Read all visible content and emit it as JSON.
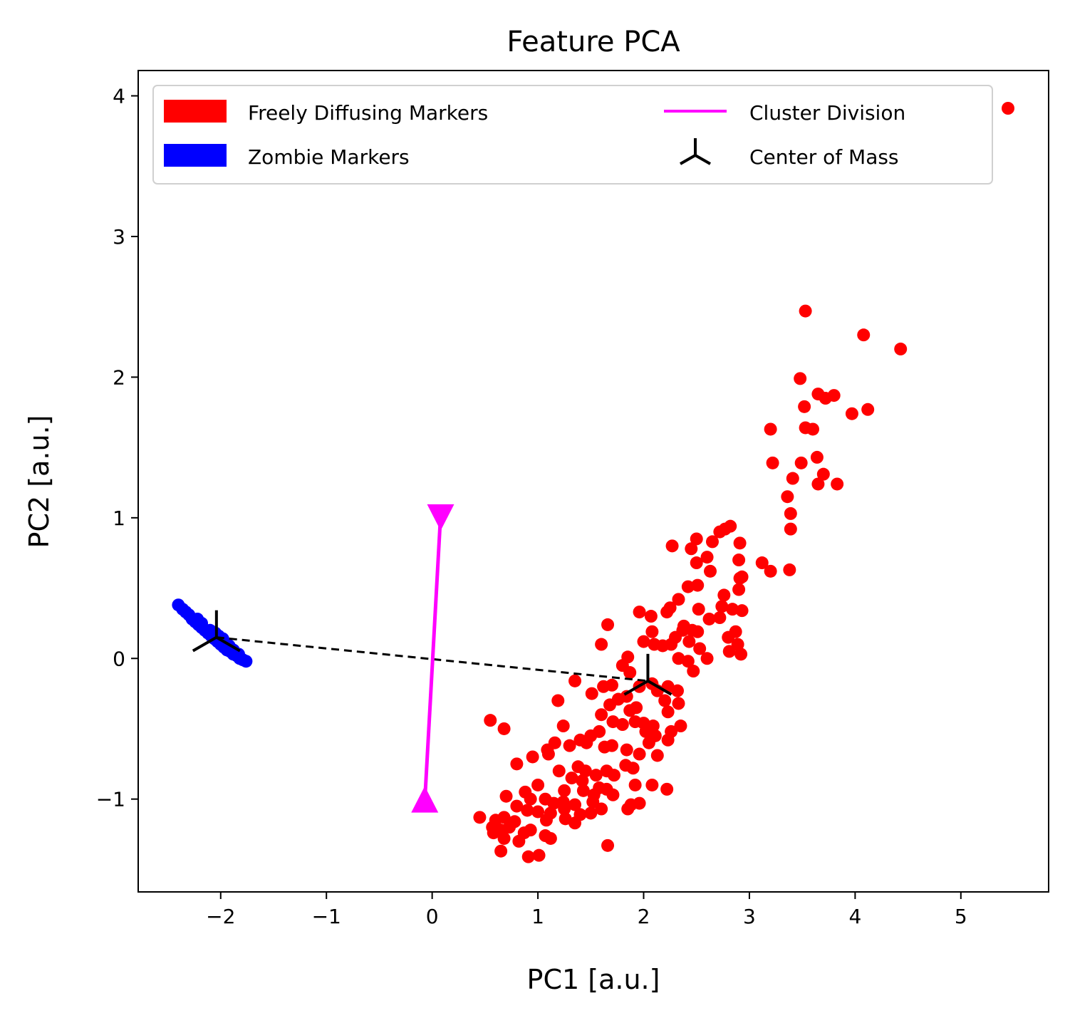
{
  "chart_data": {
    "type": "scatter",
    "title": "Feature PCA",
    "xlabel": "PC1 [a.u.]",
    "ylabel": "PC2 [a.u.]",
    "xlim": [
      -2.78,
      5.83
    ],
    "ylim": [
      -1.66,
      4.18
    ],
    "xticks": [
      -2,
      -1,
      0,
      1,
      2,
      3,
      4,
      5
    ],
    "xtick_labels": [
      "−2",
      "−1",
      "0",
      "1",
      "2",
      "3",
      "4",
      "5"
    ],
    "yticks": [
      -1,
      0,
      1,
      2,
      3,
      4
    ],
    "ytick_labels": [
      "−1",
      "0",
      "1",
      "2",
      "3",
      "4"
    ],
    "grid": false,
    "legend_position": "top",
    "legend": [
      {
        "label": "Freely Diffusing Markers",
        "symbol": "patch",
        "color": "#ff0000"
      },
      {
        "label": "Zombie Markers",
        "symbol": "patch",
        "color": "#0000ff"
      },
      {
        "label": "Cluster Division",
        "symbol": "line",
        "color": "#ff00ff"
      },
      {
        "label": "Center of Mass",
        "symbol": "tri_down_marker",
        "color": "#000000"
      }
    ],
    "series": [
      {
        "name": "Freely Diffusing Markers",
        "color": "#ff0000",
        "points": [
          [
            3.53,
            2.47
          ],
          [
            4.08,
            2.3
          ],
          [
            4.43,
            2.2
          ],
          [
            3.48,
            1.99
          ],
          [
            3.52,
            1.79
          ],
          [
            3.65,
            1.88
          ],
          [
            3.72,
            1.85
          ],
          [
            3.8,
            1.87
          ],
          [
            3.97,
            1.74
          ],
          [
            4.12,
            1.77
          ],
          [
            3.2,
            1.63
          ],
          [
            3.53,
            1.64
          ],
          [
            3.6,
            1.63
          ],
          [
            3.22,
            1.39
          ],
          [
            3.49,
            1.39
          ],
          [
            3.64,
            1.43
          ],
          [
            3.7,
            1.31
          ],
          [
            3.41,
            1.28
          ],
          [
            3.65,
            1.24
          ],
          [
            3.83,
            1.24
          ],
          [
            3.36,
            1.15
          ],
          [
            3.39,
            1.03
          ],
          [
            3.39,
            0.92
          ],
          [
            3.38,
            0.63
          ],
          [
            3.12,
            0.68
          ],
          [
            3.2,
            0.62
          ],
          [
            2.82,
            0.94
          ],
          [
            2.77,
            0.92
          ],
          [
            2.72,
            0.9
          ],
          [
            2.91,
            0.82
          ],
          [
            2.65,
            0.83
          ],
          [
            2.5,
            0.85
          ],
          [
            2.45,
            0.78
          ],
          [
            2.27,
            0.8
          ],
          [
            2.6,
            0.72
          ],
          [
            2.5,
            0.68
          ],
          [
            2.9,
            0.7
          ],
          [
            2.63,
            0.62
          ],
          [
            2.91,
            0.57
          ],
          [
            2.93,
            0.58
          ],
          [
            2.9,
            0.49
          ],
          [
            2.51,
            0.52
          ],
          [
            2.42,
            0.51
          ],
          [
            2.76,
            0.45
          ],
          [
            2.74,
            0.37
          ],
          [
            2.84,
            0.35
          ],
          [
            2.93,
            0.34
          ],
          [
            2.72,
            0.29
          ],
          [
            2.62,
            0.28
          ],
          [
            2.52,
            0.35
          ],
          [
            2.33,
            0.42
          ],
          [
            2.25,
            0.36
          ],
          [
            2.22,
            0.33
          ],
          [
            2.37,
            0.2
          ],
          [
            2.38,
            0.23
          ],
          [
            2.46,
            0.2
          ],
          [
            2.51,
            0.19
          ],
          [
            2.87,
            0.19
          ],
          [
            2.3,
            0.15
          ],
          [
            2.26,
            0.1
          ],
          [
            2.8,
            0.15
          ],
          [
            2.43,
            0.12
          ],
          [
            2.53,
            0.07
          ],
          [
            2.6,
            0.0
          ],
          [
            2.81,
            0.05
          ],
          [
            2.89,
            0.1
          ],
          [
            2.92,
            0.03
          ],
          [
            2.42,
            -0.02
          ],
          [
            2.47,
            -0.09
          ],
          [
            2.33,
            0.0
          ],
          [
            1.96,
            0.33
          ],
          [
            2.07,
            0.3
          ],
          [
            2.08,
            0.19
          ],
          [
            2.0,
            0.12
          ],
          [
            2.1,
            0.1
          ],
          [
            2.18,
            0.09
          ],
          [
            1.66,
            0.24
          ],
          [
            1.6,
            0.1
          ],
          [
            1.85,
            0.01
          ],
          [
            1.8,
            -0.05
          ],
          [
            1.87,
            -0.1
          ],
          [
            1.96,
            -0.2
          ],
          [
            2.08,
            -0.18
          ],
          [
            2.23,
            -0.2
          ],
          [
            2.13,
            -0.23
          ],
          [
            2.32,
            -0.23
          ],
          [
            2.2,
            -0.3
          ],
          [
            2.23,
            -0.38
          ],
          [
            2.33,
            -0.32
          ],
          [
            2.35,
            -0.48
          ],
          [
            1.35,
            -0.16
          ],
          [
            1.51,
            -0.25
          ],
          [
            1.62,
            -0.2
          ],
          [
            1.7,
            -0.19
          ],
          [
            1.76,
            -0.29
          ],
          [
            1.84,
            -0.27
          ],
          [
            1.87,
            -0.37
          ],
          [
            1.93,
            -0.35
          ],
          [
            1.68,
            -0.33
          ],
          [
            1.6,
            -0.4
          ],
          [
            1.71,
            -0.45
          ],
          [
            1.8,
            -0.47
          ],
          [
            1.92,
            -0.45
          ],
          [
            2.0,
            -0.46
          ],
          [
            2.09,
            -0.48
          ],
          [
            2.02,
            -0.52
          ],
          [
            2.11,
            -0.55
          ],
          [
            2.23,
            -0.58
          ],
          [
            2.26,
            -0.52
          ],
          [
            2.05,
            -0.6
          ],
          [
            1.58,
            -0.52
          ],
          [
            1.5,
            -0.55
          ],
          [
            1.4,
            -0.58
          ],
          [
            1.3,
            -0.62
          ],
          [
            1.46,
            -0.6
          ],
          [
            1.63,
            -0.63
          ],
          [
            1.7,
            -0.62
          ],
          [
            1.84,
            -0.65
          ],
          [
            1.96,
            -0.68
          ],
          [
            2.13,
            -0.69
          ],
          [
            1.19,
            -0.3
          ],
          [
            1.24,
            -0.48
          ],
          [
            1.16,
            -0.6
          ],
          [
            1.09,
            -0.65
          ],
          [
            0.95,
            -0.7
          ],
          [
            0.8,
            -0.75
          ],
          [
            0.55,
            -0.44
          ],
          [
            0.68,
            -0.5
          ],
          [
            1.1,
            -0.68
          ],
          [
            1.38,
            -0.77
          ],
          [
            1.45,
            -0.8
          ],
          [
            1.55,
            -0.83
          ],
          [
            1.65,
            -0.8
          ],
          [
            1.72,
            -0.83
          ],
          [
            1.83,
            -0.76
          ],
          [
            1.9,
            -0.78
          ],
          [
            1.2,
            -0.8
          ],
          [
            1.32,
            -0.85
          ],
          [
            1.42,
            -0.87
          ],
          [
            1.58,
            -0.92
          ],
          [
            1.65,
            -0.93
          ],
          [
            1.71,
            -0.97
          ],
          [
            1.92,
            -0.9
          ],
          [
            2.08,
            -0.9
          ],
          [
            2.22,
            -0.93
          ],
          [
            1.25,
            -0.94
          ],
          [
            1.43,
            -0.94
          ],
          [
            1.53,
            -0.97
          ],
          [
            1.0,
            -0.9
          ],
          [
            0.88,
            -0.95
          ],
          [
            0.93,
            -1.0
          ],
          [
            1.07,
            -1.0
          ],
          [
            1.15,
            -1.03
          ],
          [
            1.24,
            -1.02
          ],
          [
            1.35,
            -1.04
          ],
          [
            1.52,
            -1.02
          ],
          [
            0.7,
            -0.98
          ],
          [
            0.8,
            -1.05
          ],
          [
            0.9,
            -1.08
          ],
          [
            1.0,
            -1.09
          ],
          [
            1.12,
            -1.1
          ],
          [
            1.25,
            -1.07
          ],
          [
            1.4,
            -1.11
          ],
          [
            1.5,
            -1.1
          ],
          [
            1.6,
            -1.07
          ],
          [
            1.85,
            -1.07
          ],
          [
            1.88,
            -1.04
          ],
          [
            1.96,
            -1.03
          ],
          [
            0.45,
            -1.13
          ],
          [
            0.6,
            -1.15
          ],
          [
            0.68,
            -1.13
          ],
          [
            0.78,
            -1.16
          ],
          [
            1.08,
            -1.15
          ],
          [
            1.26,
            -1.14
          ],
          [
            1.35,
            -1.17
          ],
          [
            0.57,
            -1.2
          ],
          [
            0.65,
            -1.22
          ],
          [
            0.73,
            -1.2
          ],
          [
            0.87,
            -1.24
          ],
          [
            0.93,
            -1.22
          ],
          [
            1.07,
            -1.26
          ],
          [
            1.12,
            -1.28
          ],
          [
            0.58,
            -1.24
          ],
          [
            0.68,
            -1.28
          ],
          [
            0.82,
            -1.3
          ],
          [
            1.66,
            -1.33
          ],
          [
            0.65,
            -1.37
          ],
          [
            0.91,
            -1.41
          ],
          [
            1.01,
            -1.4
          ]
        ]
      },
      {
        "name": "Zombie Markers",
        "color": "#0000ff",
        "points": [
          [
            -2.4,
            0.38
          ],
          [
            -2.36,
            0.35
          ],
          [
            -2.33,
            0.33
          ],
          [
            -2.3,
            0.31
          ],
          [
            -2.27,
            0.28
          ],
          [
            -2.24,
            0.26
          ],
          [
            -2.21,
            0.24
          ],
          [
            -2.18,
            0.22
          ],
          [
            -2.15,
            0.2
          ],
          [
            -2.12,
            0.18
          ],
          [
            -2.09,
            0.16
          ],
          [
            -2.06,
            0.14
          ],
          [
            -2.03,
            0.12
          ],
          [
            -2.0,
            0.1
          ],
          [
            -1.97,
            0.08
          ],
          [
            -1.94,
            0.06
          ],
          [
            -1.91,
            0.05
          ],
          [
            -1.88,
            0.03
          ],
          [
            -1.85,
            0.02
          ],
          [
            -1.82,
            0.0
          ],
          [
            -1.79,
            -0.01
          ],
          [
            -1.76,
            -0.02
          ],
          [
            -2.22,
            0.28
          ],
          [
            -2.18,
            0.25
          ],
          [
            -2.1,
            0.2
          ],
          [
            -2.02,
            0.16
          ],
          [
            -1.95,
            0.11
          ],
          [
            -1.88,
            0.06
          ],
          [
            -1.83,
            0.03
          ],
          [
            -2.05,
            0.18
          ],
          [
            -1.98,
            0.14
          ],
          [
            -1.92,
            0.09
          ]
        ]
      }
    ],
    "stray_legend_marker": {
      "color": "#ff0000"
    },
    "cluster_division": {
      "from": [
        -0.07,
        -1.02
      ],
      "to": [
        0.08,
        1.02
      ],
      "color": "#ff00ff",
      "start_marker": "triangle-up",
      "end_marker": "triangle-down"
    },
    "centers_of_mass": [
      [
        -2.04,
        0.15
      ],
      [
        2.04,
        -0.16
      ]
    ],
    "center_line_style": "dashed"
  }
}
